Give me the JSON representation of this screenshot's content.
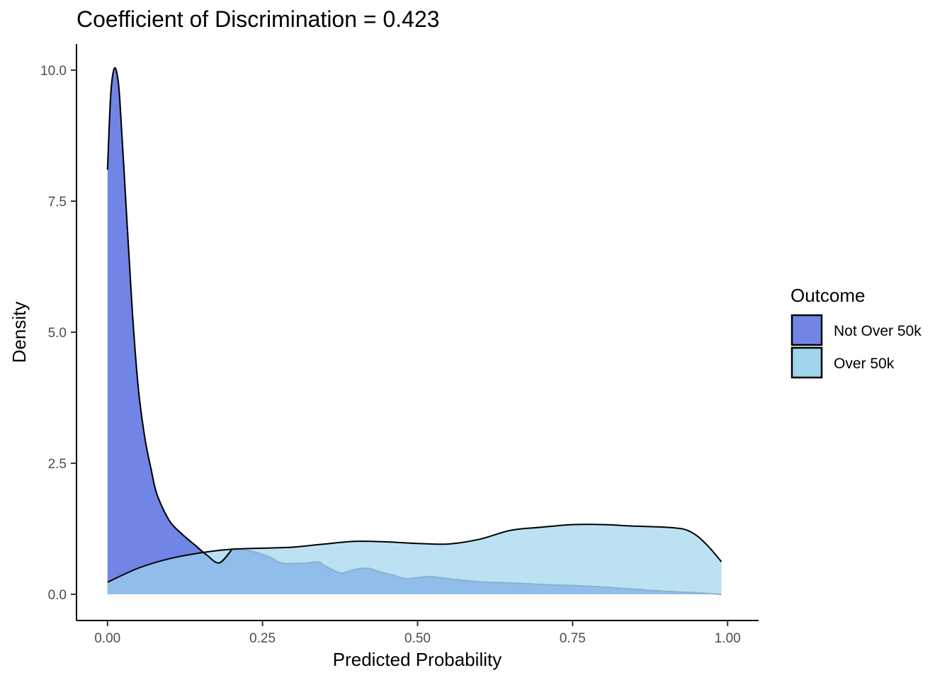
{
  "chart_data": {
    "type": "area",
    "title": "Coefficient of Discrimination = 0.423",
    "xlabel": "Predicted Probability",
    "ylabel": "Density",
    "xlim": [
      -0.05,
      1.05
    ],
    "ylim": [
      -0.5,
      10.5
    ],
    "x_ticks": [
      0.0,
      0.25,
      0.5,
      0.75,
      1.0
    ],
    "x_tick_labels": [
      "0.00",
      "0.25",
      "0.50",
      "0.75",
      "1.00"
    ],
    "y_ticks": [
      0.0,
      2.5,
      5.0,
      7.5,
      10.0
    ],
    "y_tick_labels": [
      "0.0",
      "2.5",
      "5.0",
      "7.5",
      "10.0"
    ],
    "grid": false,
    "legend": {
      "title": "Outcome",
      "position": "right"
    },
    "series": [
      {
        "name": "Not Over 50k",
        "color": "#7085e6",
        "x": [
          0.0,
          0.005,
          0.01,
          0.015,
          0.02,
          0.03,
          0.04,
          0.05,
          0.06,
          0.07,
          0.08,
          0.1,
          0.12,
          0.14,
          0.16,
          0.18,
          0.2,
          0.23,
          0.26,
          0.28,
          0.3,
          0.32,
          0.34,
          0.35,
          0.37,
          0.38,
          0.4,
          0.42,
          0.44,
          0.46,
          0.48,
          0.5,
          0.52,
          0.55,
          0.6,
          0.65,
          0.7,
          0.75,
          0.8,
          0.85,
          0.9,
          0.95,
          0.99
        ],
        "y": [
          8.1,
          9.5,
          10.0,
          9.95,
          9.4,
          7.4,
          5.4,
          3.9,
          3.0,
          2.4,
          1.9,
          1.4,
          1.15,
          0.95,
          0.75,
          0.6,
          0.84,
          0.83,
          0.72,
          0.6,
          0.59,
          0.6,
          0.62,
          0.55,
          0.43,
          0.41,
          0.48,
          0.5,
          0.43,
          0.37,
          0.3,
          0.32,
          0.34,
          0.3,
          0.24,
          0.22,
          0.19,
          0.17,
          0.14,
          0.1,
          0.06,
          0.03,
          0.0
        ]
      },
      {
        "name": "Over 50k",
        "color": "#9fd4ec",
        "x": [
          0.0,
          0.05,
          0.1,
          0.15,
          0.2,
          0.25,
          0.3,
          0.35,
          0.4,
          0.45,
          0.5,
          0.55,
          0.6,
          0.65,
          0.7,
          0.75,
          0.8,
          0.85,
          0.9,
          0.93,
          0.95,
          0.97,
          0.99
        ],
        "y": [
          0.23,
          0.5,
          0.68,
          0.79,
          0.86,
          0.88,
          0.9,
          0.96,
          1.01,
          1.0,
          0.97,
          0.96,
          1.05,
          1.22,
          1.28,
          1.33,
          1.33,
          1.3,
          1.28,
          1.24,
          1.12,
          0.9,
          0.62
        ]
      }
    ]
  }
}
